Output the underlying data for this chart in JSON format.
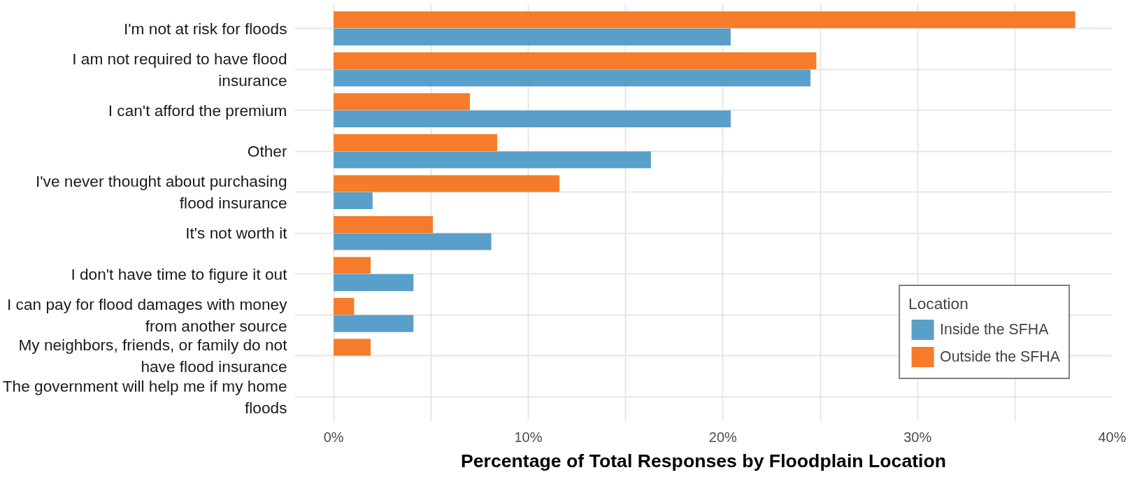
{
  "chart_data": {
    "type": "bar",
    "orientation": "horizontal",
    "xlabel": "Percentage of Total Responses by Floodplain Location",
    "legend_title": "Location",
    "categories": [
      "I'm not at risk for floods",
      "I am not required to have flood insurance",
      "I can't afford the premium",
      "Other",
      "I've never thought about purchasing flood insurance",
      "It's not worth it",
      "I don't have time to figure it out",
      "I can pay for flood damages with money from another source",
      "My neighbors, friends, or family do not have flood insurance",
      "The government will help me if my home floods"
    ],
    "series": [
      {
        "name": "Inside the SFHA",
        "color": "#589fc9",
        "values": [
          20.4,
          24.5,
          20.4,
          16.3,
          2.0,
          8.1,
          4.1,
          4.1,
          0,
          0
        ]
      },
      {
        "name": "Outside the SFHA",
        "color": "#f67b2a",
        "values": [
          38.1,
          24.8,
          7.0,
          8.4,
          11.6,
          5.1,
          1.9,
          1.05,
          1.9,
          0
        ]
      }
    ],
    "xlim": [
      -2,
      40
    ],
    "xticks": [
      {
        "value": 0,
        "label": "0%"
      },
      {
        "value": 5,
        "label": null
      },
      {
        "value": 10,
        "label": "10%"
      },
      {
        "value": 15,
        "label": null
      },
      {
        "value": 20,
        "label": "20%"
      },
      {
        "value": 25,
        "label": null
      },
      {
        "value": 30,
        "label": "30%"
      },
      {
        "value": 35,
        "label": null
      },
      {
        "value": 40,
        "label": "40%"
      }
    ],
    "grid": true,
    "legend": "bottom right"
  }
}
